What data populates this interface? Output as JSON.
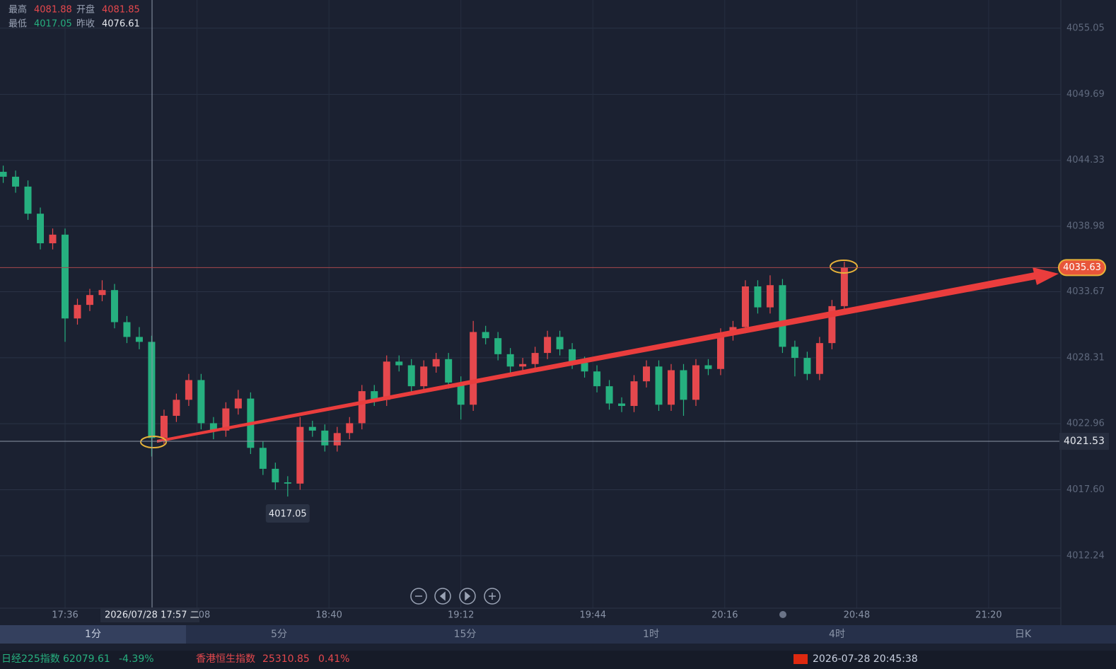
{
  "header": {
    "stats": [
      {
        "label": "最高",
        "value": 4081.88
      },
      {
        "label": "开盘",
        "value": 4081.85
      },
      {
        "label": "最低",
        "value": 4017.05
      },
      {
        "label": "昨收",
        "value": 4076.61
      }
    ]
  },
  "chart_data": {
    "type": "candlestick",
    "x": [
      "17:21",
      "17:24",
      "17:27",
      "17:30",
      "17:33",
      "17:36",
      "17:39",
      "17:42",
      "17:45",
      "17:48",
      "17:51",
      "17:54",
      "17:57",
      "18:00",
      "18:03",
      "18:06",
      "18:09",
      "18:12",
      "18:15",
      "18:18",
      "18:21",
      "18:24",
      "18:27",
      "18:30",
      "18:33",
      "18:36",
      "18:39",
      "18:42",
      "18:45",
      "18:48",
      "18:51",
      "18:54",
      "18:57",
      "19:00",
      "19:03",
      "19:06",
      "19:09",
      "19:12",
      "19:15",
      "19:18",
      "19:21",
      "19:24",
      "19:27",
      "19:30",
      "19:33",
      "19:36",
      "19:39",
      "19:42",
      "19:45",
      "19:48",
      "19:51",
      "19:54",
      "19:57",
      "20:00",
      "20:03",
      "20:06",
      "20:09",
      "20:12",
      "20:15",
      "20:18",
      "20:21",
      "20:24",
      "20:27",
      "20:30",
      "20:33",
      "20:36",
      "20:39",
      "20:42",
      "20:45"
    ],
    "open": [
      4043.4,
      4043.0,
      4042.2,
      4040.0,
      4037.6,
      4038.3,
      4031.5,
      4032.6,
      4033.4,
      4033.8,
      4031.2,
      4030.0,
      4029.6,
      4021.8,
      4023.6,
      4024.9,
      4026.5,
      4023.0,
      4022.4,
      4024.2,
      4025.0,
      4021.0,
      4019.3,
      4018.2,
      4018.1,
      4022.7,
      4022.4,
      4021.2,
      4022.2,
      4023.0,
      4025.6,
      4024.9,
      4028.0,
      4027.7,
      4026.0,
      4027.6,
      4028.2,
      4026.3,
      4024.5,
      4030.4,
      4029.9,
      4028.6,
      4027.6,
      4027.8,
      4028.7,
      4030.0,
      4029.0,
      4027.9,
      4027.2,
      4026.0,
      4024.6,
      4024.4,
      4026.4,
      4027.6,
      4024.5,
      4027.3,
      4024.9,
      4027.7,
      4027.4,
      4030.2,
      4030.8,
      4034.1,
      4032.4,
      4034.2,
      4029.2,
      4028.3,
      4027.0,
      4029.5,
      4032.5
    ],
    "high": [
      4043.9,
      4043.5,
      4042.7,
      4040.5,
      4038.8,
      4038.8,
      4033.1,
      4033.9,
      4034.6,
      4034.3,
      4031.7,
      4030.8,
      4030.1,
      4024.1,
      4025.4,
      4027.0,
      4027.0,
      4023.5,
      4024.7,
      4025.7,
      4025.5,
      4021.5,
      4019.8,
      4018.7,
      4023.5,
      4023.2,
      4022.9,
      4022.7,
      4023.5,
      4026.1,
      4026.1,
      4028.5,
      4028.5,
      4028.2,
      4028.1,
      4028.7,
      4028.7,
      4026.8,
      4031.3,
      4030.9,
      4030.4,
      4029.1,
      4028.3,
      4029.2,
      4030.5,
      4030.5,
      4029.5,
      4028.4,
      4027.7,
      4026.5,
      4025.1,
      4026.9,
      4028.1,
      4028.1,
      4027.8,
      4027.8,
      4028.2,
      4028.2,
      4030.7,
      4031.3,
      4034.6,
      4034.6,
      4035.0,
      4034.7,
      4029.7,
      4028.8,
      4030.0,
      4033.0,
      4036.1
    ],
    "low": [
      4042.5,
      4041.7,
      4039.5,
      4037.1,
      4037.1,
      4029.6,
      4031.0,
      4032.1,
      4032.9,
      4030.7,
      4029.5,
      4029.0,
      4020.3,
      4021.3,
      4023.1,
      4024.4,
      4022.5,
      4021.7,
      4021.9,
      4023.7,
      4020.5,
      4018.8,
      4017.6,
      4017.05,
      4017.6,
      4021.9,
      4020.7,
      4020.7,
      4021.7,
      4022.5,
      4024.4,
      4024.4,
      4027.2,
      4025.5,
      4025.5,
      4027.1,
      4025.8,
      4023.3,
      4024.0,
      4029.4,
      4028.1,
      4027.1,
      4027.1,
      4027.3,
      4028.2,
      4028.5,
      4027.4,
      4026.7,
      4025.5,
      4024.1,
      4023.9,
      4023.9,
      4025.9,
      4024.0,
      4024.0,
      4023.6,
      4024.4,
      4026.9,
      4026.9,
      4029.7,
      4030.3,
      4031.9,
      4031.9,
      4028.7,
      4026.8,
      4026.5,
      4026.5,
      4029.0,
      4032.0
    ],
    "close": [
      4043.0,
      4042.2,
      4040.0,
      4037.6,
      4038.3,
      4031.5,
      4032.6,
      4033.4,
      4033.8,
      4031.2,
      4030.0,
      4029.6,
      4021.8,
      4023.6,
      4024.9,
      4026.5,
      4023.0,
      4022.4,
      4024.2,
      4025.0,
      4021.0,
      4019.3,
      4018.2,
      4018.1,
      4022.7,
      4022.4,
      4021.2,
      4022.2,
      4023.0,
      4025.6,
      4024.9,
      4028.0,
      4027.7,
      4026.0,
      4027.6,
      4028.2,
      4026.3,
      4024.5,
      4030.4,
      4029.9,
      4028.6,
      4027.6,
      4027.8,
      4028.7,
      4030.0,
      4029.0,
      4027.9,
      4027.2,
      4026.0,
      4024.6,
      4024.4,
      4026.4,
      4027.6,
      4024.5,
      4027.3,
      4024.9,
      4027.7,
      4027.4,
      4030.2,
      4030.8,
      4034.1,
      4032.4,
      4034.2,
      4029.2,
      4028.3,
      4027.0,
      4029.5,
      4032.5,
      4035.63
    ],
    "ylim": [
      4007.99,
      4057.34
    ],
    "yticks": [
      4055.05,
      4049.69,
      4044.33,
      4038.98,
      4033.67,
      4028.31,
      4022.96,
      {
        "value": 4017.6,
        "label": "4017.60"
      },
      4012.24
    ],
    "xticks": [
      "17:36",
      "18:08",
      "18:40",
      "19:12",
      "19:44",
      "20:16",
      "20:48",
      "21:20"
    ],
    "grid": true,
    "up_color": "#e5484d",
    "down_color": "#26b07f",
    "last_price": 4035.63,
    "crosshair": {
      "time_label": "2026/07/28 17:57 二",
      "price": 4021.53
    },
    "low_label": 4017.05
  },
  "tabs": [
    "1分",
    "5分",
    "15分",
    "1时",
    "4时",
    "日K"
  ],
  "ticker": [
    {
      "name": "日经225指数",
      "price": 62079.61,
      "change": "-4.39%"
    },
    {
      "name": "香港恒生指数",
      "price": 25310.85,
      "change": "0.41%"
    }
  ],
  "clock": "2026-07-28 20:45:38"
}
